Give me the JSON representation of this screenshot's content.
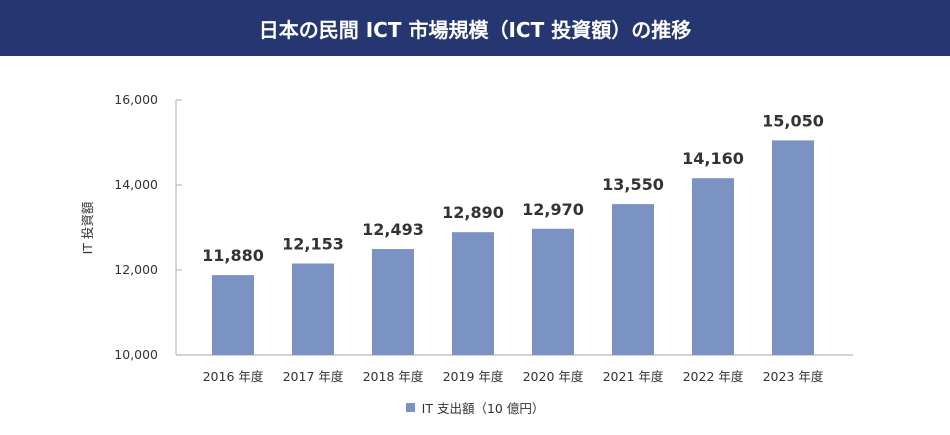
{
  "chart_data": {
    "type": "bar",
    "title": "日本の民間 ICT 市場規模（ICT 投資額）の推移",
    "categories": [
      "2016 年度",
      "2017 年度",
      "2018 年度",
      "2019 年度",
      "2020 年度",
      "2021 年度",
      "2022 年度",
      "2023 年度"
    ],
    "series": [
      {
        "name": "IT 支出額（10 億円）",
        "values": [
          11880,
          12153,
          12493,
          12890,
          12970,
          13550,
          14160,
          15050
        ],
        "color": "#7a93c3"
      }
    ],
    "value_labels": [
      "11,880",
      "12,153",
      "12,493",
      "12,890",
      "12,970",
      "13,550",
      "14,160",
      "15,050"
    ],
    "ylabel": "IT 投資額",
    "xlabel": "",
    "ylim": [
      10000,
      16000
    ],
    "yticks": [
      "10,000",
      "12,000",
      "14,000",
      "16,000"
    ],
    "ytick_values": [
      10000,
      12000,
      14000,
      16000
    ],
    "grid": false,
    "legend": "bottom",
    "header_color": "#253671"
  }
}
